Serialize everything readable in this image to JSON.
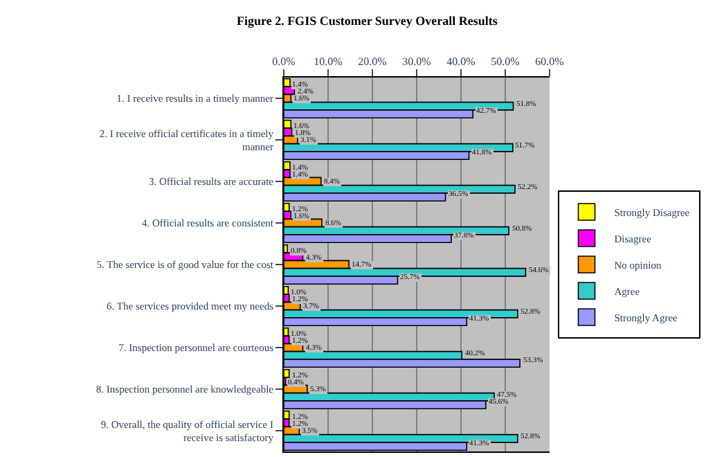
{
  "chart_data": {
    "type": "bar",
    "orientation": "horizontal",
    "title": "Figure 2. FGIS Customer Survey Overall Results",
    "categories": [
      "1. I receive results in a timely manner",
      "2. I receive official certificates in a timely manner",
      "3. Official results are accurate",
      "4. Official results are consistent",
      "5. The service is of good value for the cost",
      "6. The services provided meet my needs",
      "7. Inspection personnel are courteous",
      "8. Inspection personnel are knowledgeable",
      "9. Overall, the quality of official service I receive is satisfactory"
    ],
    "series": [
      {
        "name": "Strongly Disagree",
        "color": "#ffff00",
        "values": [
          1.4,
          1.6,
          1.4,
          1.2,
          0.8,
          1.0,
          1.0,
          1.2,
          1.2
        ],
        "value_labels": [
          "1.4%",
          "1.6%",
          "1.4%",
          "1.2%",
          "0.8%",
          "1.0%",
          "1.0%",
          "1.2%",
          "1.2%"
        ]
      },
      {
        "name": "Disagree",
        "color": "#ff00ff",
        "values": [
          2.4,
          1.8,
          1.4,
          1.6,
          4.3,
          1.2,
          1.2,
          0.4,
          1.2
        ],
        "value_labels": [
          "2.4%",
          "1.8%",
          "1.4%",
          "1.6%",
          "4.3%",
          "1.2%",
          "1.2%",
          "0.4%",
          "1.2%"
        ]
      },
      {
        "name": "No opinion",
        "color": "#ff9900",
        "values": [
          1.6,
          3.1,
          8.4,
          8.6,
          14.7,
          3.7,
          4.3,
          5.3,
          3.5
        ],
        "value_labels": [
          "1.6%",
          "3.1%",
          "8.4%",
          "8.6%",
          "14.7%",
          "3.7%",
          "4.3%",
          "5.3%",
          "3.5%"
        ]
      },
      {
        "name": "Agree",
        "color": "#33cccc",
        "values": [
          51.8,
          51.7,
          52.2,
          50.8,
          54.6,
          52.8,
          40.2,
          47.5,
          52.8
        ],
        "value_labels": [
          "51.8%",
          "51.7%",
          "52.2%",
          "50.8%",
          "54.6%",
          "52.8%",
          "40.2%",
          "47.5%",
          "52.8%"
        ]
      },
      {
        "name": "Strongly Agree",
        "color": "#9999ff",
        "values": [
          42.7,
          41.8,
          36.5,
          37.8,
          25.7,
          41.3,
          53.3,
          45.6,
          41.3
        ],
        "value_labels": [
          "42.7%",
          "41.8%",
          "36.5%",
          "37.8%",
          "25.7%",
          "41.3%",
          "53.3%",
          "45.6%",
          "41.3%"
        ]
      }
    ],
    "xlim": [
      0,
      60
    ],
    "xticks": [
      {
        "value": 0,
        "label": "0.0%"
      },
      {
        "value": 10,
        "label": "10.0%"
      },
      {
        "value": 20,
        "label": "20.0%"
      },
      {
        "value": 30,
        "label": "30.0%"
      },
      {
        "value": 40,
        "label": "40.0%"
      },
      {
        "value": 50,
        "label": "50.0%"
      },
      {
        "value": 60,
        "label": "60.0%"
      }
    ],
    "grid": "x",
    "legend": "right"
  }
}
